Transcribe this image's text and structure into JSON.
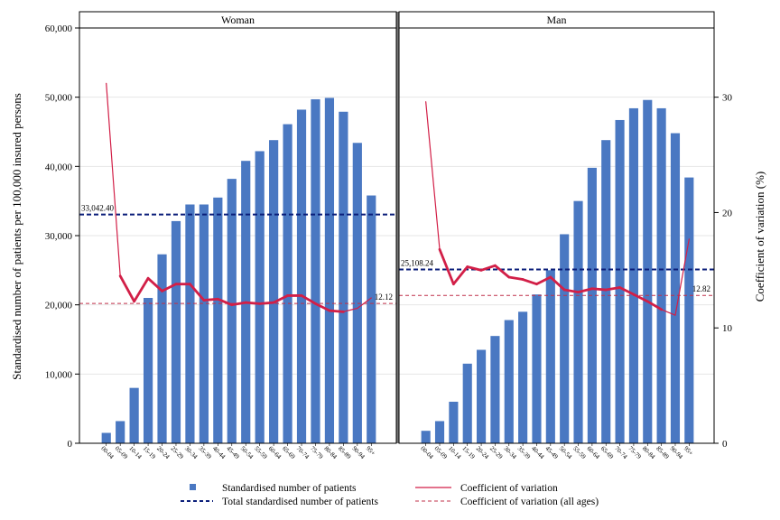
{
  "chart_data": {
    "type": "bar",
    "panels": [
      {
        "title": "Woman",
        "total_label": "33,042.40",
        "cv_all_label": "12.12",
        "total": 33042.4,
        "cv_all": 12.12
      },
      {
        "title": "Man",
        "total_label": "25,108.24",
        "cv_all_label": "12.82",
        "total": 25108.24,
        "cv_all": 12.82
      }
    ],
    "categories": [
      "00-04",
      "05-09",
      "10-14",
      "15-19",
      "20-24",
      "25-29",
      "30-34",
      "35-39",
      "40-44",
      "45-49",
      "50-54",
      "55-59",
      "60-64",
      "65-69",
      "70-74",
      "75-79",
      "80-84",
      "85-89",
      "90-94",
      "95+"
    ],
    "series": [
      {
        "name": "Standardised number of patients",
        "axis": "left",
        "woman": [
          1500,
          3200,
          8000,
          21000,
          27300,
          32100,
          34500,
          34500,
          35500,
          38200,
          40800,
          42200,
          43800,
          46100,
          48200,
          49700,
          49900,
          47900,
          43400,
          35800
        ],
        "man": [
          1800,
          3200,
          6000,
          11500,
          13500,
          15500,
          17800,
          19000,
          21500,
          25000,
          30200,
          35000,
          39800,
          43800,
          46700,
          48400,
          49600,
          48400,
          44800,
          38400
        ]
      },
      {
        "name": "Coefficient of variation",
        "axis": "right",
        "woman": [
          31.2,
          14.5,
          12.3,
          14.3,
          13.2,
          13.8,
          13.8,
          12.4,
          12.5,
          12.0,
          12.2,
          12.1,
          12.2,
          12.8,
          12.8,
          12.1,
          11.5,
          11.4,
          11.7,
          12.6
        ],
        "man": [
          29.6,
          16.8,
          13.8,
          15.3,
          15.0,
          15.4,
          14.4,
          14.2,
          13.8,
          14.4,
          13.3,
          13.1,
          13.4,
          13.3,
          13.5,
          12.9,
          12.3,
          11.6,
          11.1,
          17.7
        ]
      },
      {
        "name": "Total standardised number of patients",
        "style": "dashed",
        "color": "#0b1e7a"
      },
      {
        "name": "Coefficient of variation (all ages)",
        "style": "dashed",
        "color": "#c0304a"
      }
    ],
    "ylabel": "Standardised number of patients per 100,000 insured persons",
    "y2label": "Coefficient of variation (%)",
    "ylim": [
      0,
      60000
    ],
    "y2lim": [
      0,
      36
    ],
    "yticks": [
      "0",
      "10,000",
      "20,000",
      "30,000",
      "40,000",
      "50,000",
      "60,000"
    ],
    "yticks_values": [
      0,
      10000,
      20000,
      30000,
      40000,
      50000,
      60000
    ],
    "y2ticks": [
      "0",
      "10",
      "20",
      "30"
    ],
    "y2ticks_values": [
      0,
      10,
      20,
      30
    ],
    "legend_position": "bottom",
    "grid": true,
    "colors": {
      "bar": "#4a78c2",
      "cv_line": "#d21f47",
      "total_line": "#0b1e7a",
      "cv_all_line": "#c0304a",
      "grid": "#e6e6e6"
    }
  }
}
